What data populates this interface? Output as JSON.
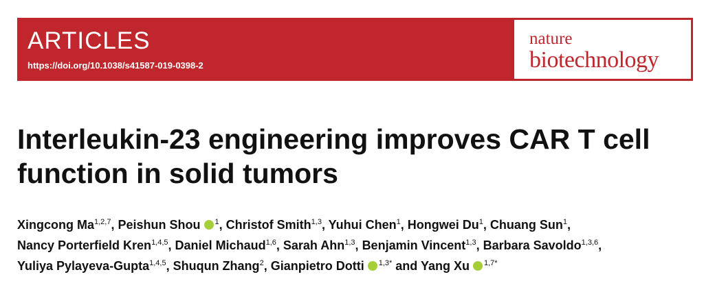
{
  "header": {
    "section": "ARTICLES",
    "doi": "https://doi.org/10.1038/s41587-019-0398-2",
    "journal": [
      "nature",
      "biotechnology"
    ]
  },
  "title": [
    "Interleukin-23 engineering improves CAR T cell",
    "function in solid tumors"
  ],
  "authors": [
    [
      {
        "name": "Xingcong Ma",
        "affil": "1,2,7",
        "sep": ", "
      },
      {
        "name": "Peishun Shou",
        "orcid": true,
        "affil": "1",
        "sep": ", "
      },
      {
        "name": "Christof Smith",
        "affil": "1,3",
        "sep": ", "
      },
      {
        "name": "Yuhui Chen",
        "affil": "1",
        "sep": ", "
      },
      {
        "name": "Hongwei Du",
        "affil": "1",
        "sep": ", "
      },
      {
        "name": "Chuang Sun",
        "affil": "1",
        "sep": ","
      }
    ],
    [
      {
        "name": "Nancy Porterfield Kren",
        "affil": "1,4,5",
        "sep": ", "
      },
      {
        "name": "Daniel Michaud",
        "affil": "1,6",
        "sep": ", "
      },
      {
        "name": "Sarah Ahn",
        "affil": "1,3",
        "sep": ", "
      },
      {
        "name": "Benjamin Vincent",
        "affil": "1,3",
        "sep": ", "
      },
      {
        "name": "Barbara Savoldo",
        "affil": "1,3,6",
        "sep": ","
      }
    ],
    [
      {
        "name": "Yuliya Pylayeva-Gupta",
        "affil": "1,4,5",
        "sep": ", "
      },
      {
        "name": "Shuqun Zhang",
        "affil": "2",
        "sep": ", "
      },
      {
        "name": "Gianpietro Dotti",
        "orcid": true,
        "affil": "1,3*",
        "sep": " and "
      },
      {
        "name": "Yang Xu",
        "orcid": true,
        "affil": "1,7*"
      }
    ]
  ]
}
